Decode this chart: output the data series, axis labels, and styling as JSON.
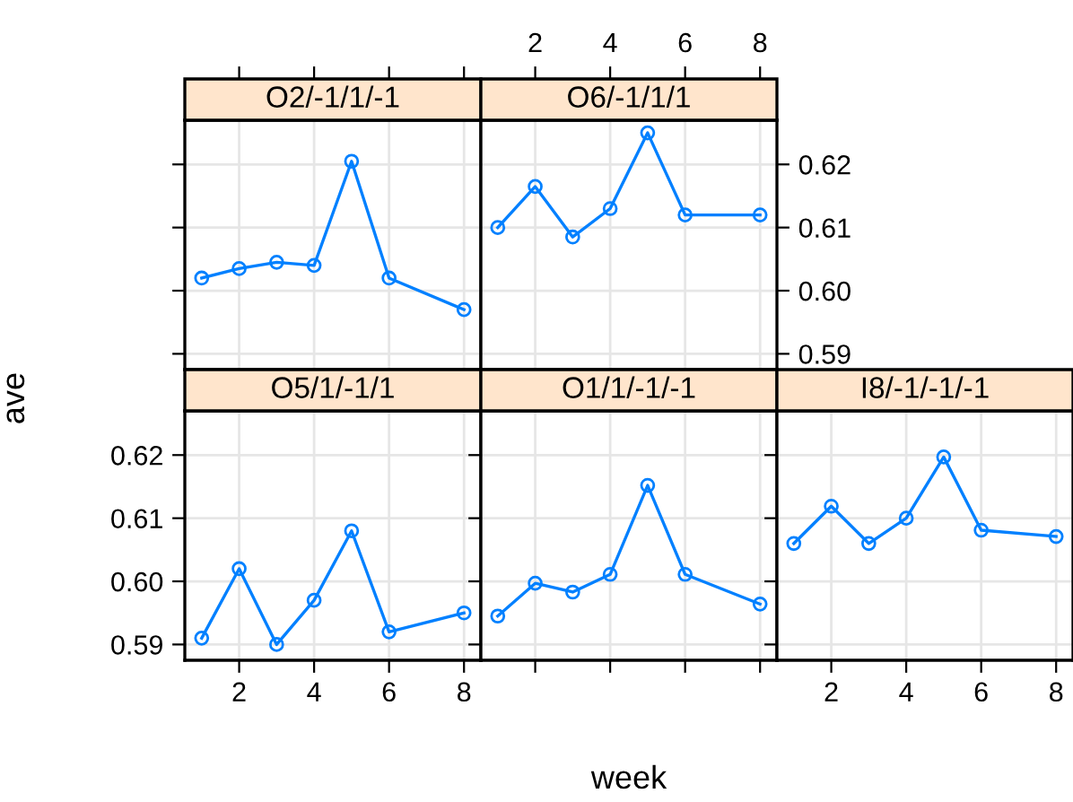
{
  "chart_data": [
    {
      "type": "line",
      "title": "O2/-1/1/-1",
      "x": [
        1,
        2,
        3,
        4,
        5,
        6,
        8
      ],
      "values": [
        0.602,
        0.6035,
        0.6045,
        0.604,
        0.6205,
        0.602,
        0.597
      ],
      "color": "#0080ff",
      "marker": "circle",
      "xlim": [
        0.55,
        8.45
      ],
      "ylim": [
        0.5875,
        0.627
      ],
      "xticks": [
        2,
        4,
        6,
        8
      ],
      "yticks": [
        0.59,
        0.6,
        0.61,
        0.62
      ],
      "tick_labels": false,
      "grid": true
    },
    {
      "type": "line",
      "title": "O6/-1/1/1",
      "x": [
        1,
        2,
        3,
        4,
        5,
        6,
        8
      ],
      "values": [
        0.61,
        0.6165,
        0.6085,
        0.613,
        0.625,
        0.612,
        0.612
      ],
      "color": "#0080ff",
      "marker": "circle",
      "xlim": [
        0.55,
        8.45
      ],
      "ylim": [
        0.5875,
        0.627
      ],
      "xticks": [
        2,
        4,
        6,
        8
      ],
      "yticks": [
        0.59,
        {
          "value": 0.6,
          "label": "0.60"
        },
        0.61,
        0.62
      ],
      "grid": true
    },
    {
      "type": "line",
      "title": "O5/1/-1/1",
      "ylabel": "ave",
      "x": [
        1,
        2,
        3,
        4,
        5,
        6,
        8
      ],
      "values": [
        0.591,
        0.602,
        0.59,
        0.597,
        0.608,
        0.592,
        0.595
      ],
      "color": "#0080ff",
      "marker": "circle",
      "xlim": [
        0.55,
        8.45
      ],
      "ylim": [
        0.5875,
        0.627
      ],
      "xticks": [
        2,
        4,
        6,
        8
      ],
      "yticks": [
        0.59,
        {
          "value": 0.6,
          "label": "0.60"
        },
        0.61,
        0.62
      ],
      "grid": true
    },
    {
      "type": "line",
      "title": "O1/1/-1/-1",
      "xlabel": "week",
      "x": [
        1,
        2,
        3,
        4,
        5,
        6,
        8
      ],
      "values": [
        0.5945,
        0.5997,
        0.5983,
        0.6011,
        0.6152,
        0.6011,
        0.5964
      ],
      "color": "#0080ff",
      "marker": "circle",
      "xlim": [
        0.55,
        8.45
      ],
      "ylim": [
        0.5875,
        0.627
      ],
      "xticks": [
        2,
        4,
        6,
        8
      ],
      "yticks": [
        0.59,
        0.6,
        0.61,
        0.62
      ],
      "tick_labels": false,
      "grid": true
    },
    {
      "type": "line",
      "title": "I8/-1/-1/-1",
      "x": [
        1,
        2,
        3,
        4,
        5,
        6,
        8
      ],
      "values": [
        0.606,
        0.6119,
        0.606,
        0.61,
        0.6197,
        0.6081,
        0.6071
      ],
      "color": "#0080ff",
      "marker": "circle",
      "xlim": [
        0.55,
        8.45
      ],
      "ylim": [
        0.5875,
        0.627
      ],
      "xticks": [
        2,
        4,
        6,
        8
      ],
      "yticks": [
        0.59,
        0.6,
        0.61,
        0.62
      ],
      "tick_labels": "x",
      "grid": true
    }
  ]
}
